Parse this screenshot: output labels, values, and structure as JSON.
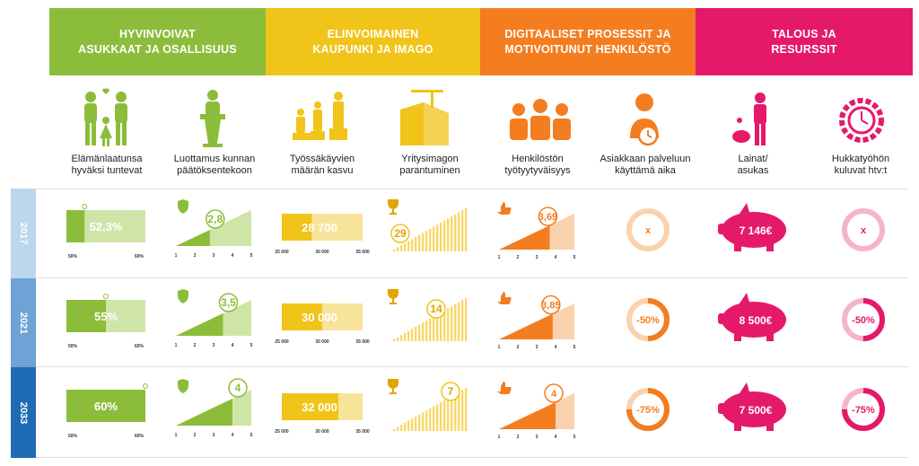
{
  "headers": [
    {
      "line1": "HYVINVOIVAT",
      "line2": "ASUKKAAT JA OSALLISUUS"
    },
    {
      "line1": "ELINVOIMAINEN",
      "line2": "KAUPUNKI JA IMAGO"
    },
    {
      "line1": "DIGITAALISET PROSESSIT JA",
      "line2": "MOTIVOITUNUT HENKILÖSTÖ"
    },
    {
      "line1": "TALOUS JA",
      "line2": "RESURSSIT"
    }
  ],
  "indicators": [
    {
      "line1": "Elämänlaatunsa",
      "line2": "hyväksi tuntevat",
      "icon": "family-icon"
    },
    {
      "line1": "Luottamus kunnan",
      "line2": "päätöksentekoon",
      "icon": "podium-icon"
    },
    {
      "line1": "Työssäkäyvien",
      "line2": "määrän kasvu",
      "icon": "workers-icon"
    },
    {
      "line1": "Yritysimagon",
      "line2": "parantuminen",
      "icon": "buildings-icon"
    },
    {
      "line1": "Henkilöstön",
      "line2": "työtyytyväisyys",
      "icon": "staff-icon"
    },
    {
      "line1": "Asiakkaan palveluun",
      "line2": "käyttämä aika",
      "icon": "customer-clock-icon"
    },
    {
      "line1": "Lainat/",
      "line2": "asukas",
      "icon": "piggybank-person-icon"
    },
    {
      "line1": "Hukkatyöhön",
      "line2": "kuluvat htv:t",
      "icon": "gear-clock-icon"
    }
  ],
  "years": [
    "2017",
    "2021",
    "2033"
  ],
  "scales": {
    "quality": {
      "min": "50%",
      "max": "60%"
    },
    "trust": [
      "1",
      "2",
      "3",
      "4",
      "5"
    ],
    "workers": [
      "25 000",
      "30 000",
      "35 000"
    ],
    "satisfaction": [
      "1",
      "2",
      "3",
      "4",
      "5"
    ]
  },
  "rows": [
    {
      "quality": "52,3%",
      "quality_value": 52.3,
      "trust": "2,8",
      "trust_value": 2.8,
      "workers": "28 700",
      "workers_value": 28700,
      "image": "29",
      "satisfaction": "3,69",
      "satisfaction_value": 3.69,
      "customer_time": "x",
      "customer_fill": 0,
      "loans": "7 146€",
      "waste": "x",
      "waste_fill": 0
    },
    {
      "quality": "55%",
      "quality_value": 55,
      "trust": "3,5",
      "trust_value": 3.5,
      "workers": "30 000",
      "workers_value": 30000,
      "image": "14",
      "satisfaction": "3,85",
      "satisfaction_value": 3.85,
      "customer_time": "-50%",
      "customer_fill": 0.5,
      "loans": "8 500€",
      "waste": "-50%",
      "waste_fill": 0.5
    },
    {
      "quality": "60%",
      "quality_value": 60,
      "trust": "4",
      "trust_value": 4,
      "workers": "32 000",
      "workers_value": 32000,
      "image": "7",
      "satisfaction": "4",
      "satisfaction_value": 4,
      "customer_time": "-75%",
      "customer_fill": 0.75,
      "loans": "7 500€",
      "waste": "-75%",
      "waste_fill": 0.75
    }
  ],
  "colors": {
    "green": "#8cbd3a",
    "yellow": "#f0c419",
    "orange": "#f47d20",
    "magenta": "#e5196a"
  }
}
